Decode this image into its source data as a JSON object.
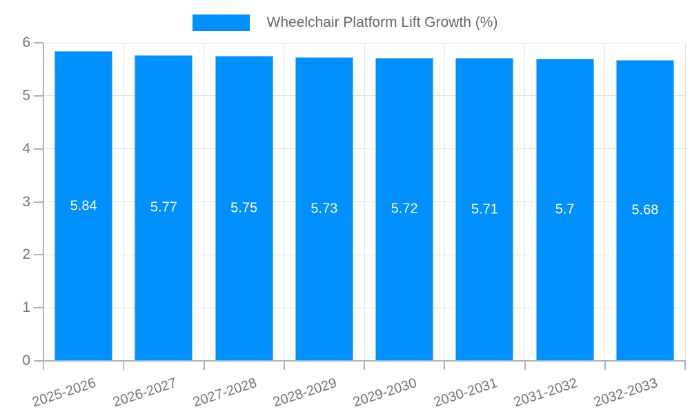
{
  "chart_data": {
    "type": "bar",
    "title": "Wheelchair Platform Lift Growth (%)",
    "legend": {
      "label": "Wheelchair Platform Lift Growth (%)",
      "position": "top"
    },
    "categories": [
      "2025-2026",
      "2026-2027",
      "2027-2028",
      "2028-2029",
      "2029-2030",
      "2030-2031",
      "2031-2032",
      "2032-2033"
    ],
    "series": [
      {
        "name": "Wheelchair Platform Lift Growth (%)",
        "values": [
          5.84,
          5.77,
          5.75,
          5.73,
          5.72,
          5.71,
          5.7,
          5.68
        ]
      }
    ],
    "xlabel": "",
    "ylabel": "",
    "ylim": [
      0,
      6
    ],
    "yticks": [
      0,
      1,
      2,
      3,
      4,
      5,
      6
    ],
    "grid": true,
    "value_labels_shown": true,
    "colors": {
      "bar": "#0090fb",
      "grid": "#e2e2e2",
      "axis": "#b1b1b1",
      "tick_label": "#757575",
      "legend_text": "#666666",
      "value_label": "#ffffff",
      "background": "#ffffff"
    }
  }
}
